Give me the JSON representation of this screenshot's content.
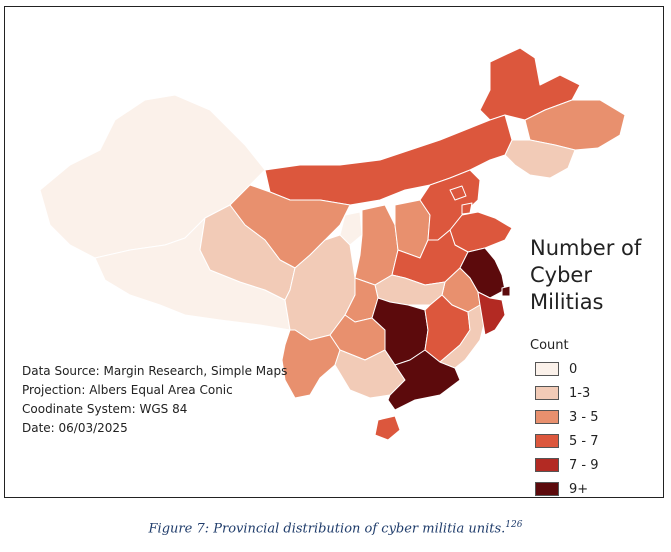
{
  "legend": {
    "title_line1": "Number of",
    "title_line2": "Cyber Militias",
    "subtitle": "Count",
    "items": [
      {
        "label": "0",
        "color": "#fbf1ea"
      },
      {
        "label": "1-3",
        "color": "#f2cbb7"
      },
      {
        "label": "3 - 5",
        "color": "#e8906e"
      },
      {
        "label": "5 - 7",
        "color": "#dc573d"
      },
      {
        "label": "7 - 9",
        "color": "#b32a23"
      },
      {
        "label": "9+",
        "color": "#5c0a0c"
      }
    ]
  },
  "source_lines": {
    "data_source": "Data Source: Margin Research, Simple Maps",
    "projection": "Projection: Albers Equal Area Conic",
    "coordinate_system": "Coodinate System: WGS 84",
    "date": "Date: 06/03/2025"
  },
  "caption": {
    "text": "Figure 7: Provincial distribution of cyber militia units.",
    "note_number": "126"
  },
  "regions": [
    {
      "name": "xinjiang",
      "category": "0"
    },
    {
      "name": "tibet",
      "category": "0"
    },
    {
      "name": "heilongjiang",
      "category": "5 - 7"
    },
    {
      "name": "jilin",
      "category": "3 - 5"
    },
    {
      "name": "liaoning",
      "category": "1-3"
    },
    {
      "name": "inner-mongolia",
      "category": "5 - 7"
    },
    {
      "name": "gansu",
      "category": "3 - 5"
    },
    {
      "name": "qinghai",
      "category": "1-3"
    },
    {
      "name": "ningxia",
      "category": "0"
    },
    {
      "name": "shaanxi",
      "category": "3 - 5"
    },
    {
      "name": "shanxi",
      "category": "3 - 5"
    },
    {
      "name": "hebei",
      "category": "5 - 7"
    },
    {
      "name": "beijing",
      "category": "5 - 7"
    },
    {
      "name": "tianjin",
      "category": "5 - 7"
    },
    {
      "name": "shandong",
      "category": "5 - 7"
    },
    {
      "name": "henan",
      "category": "5 - 7"
    },
    {
      "name": "jiangsu",
      "category": "9+"
    },
    {
      "name": "shanghai",
      "category": "9+"
    },
    {
      "name": "anhui",
      "category": "3 - 5"
    },
    {
      "name": "hubei",
      "category": "1-3"
    },
    {
      "name": "sichuan",
      "category": "1-3"
    },
    {
      "name": "chongqing",
      "category": "3 - 5"
    },
    {
      "name": "yunnan",
      "category": "3 - 5"
    },
    {
      "name": "guizhou",
      "category": "3 - 5"
    },
    {
      "name": "guangxi",
      "category": "1-3"
    },
    {
      "name": "hunan",
      "category": "9+"
    },
    {
      "name": "guangdong",
      "category": "9+"
    },
    {
      "name": "jiangxi",
      "category": "5 - 7"
    },
    {
      "name": "fujian",
      "category": "1-3"
    },
    {
      "name": "zhejiang",
      "category": "7 - 9"
    },
    {
      "name": "hainan",
      "category": "5 - 7"
    }
  ]
}
